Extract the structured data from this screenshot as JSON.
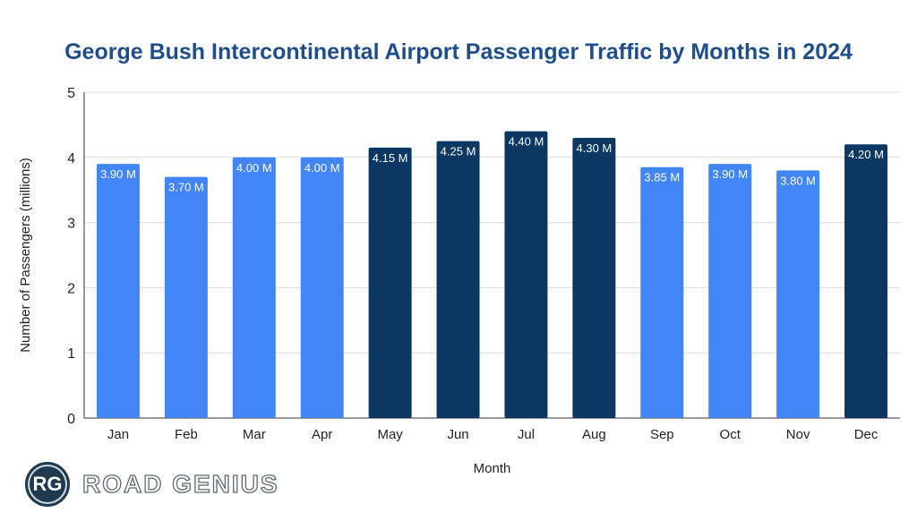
{
  "chart_data": {
    "type": "bar",
    "title": "George Bush Intercontinental Airport Passenger Traffic by Months in 2024",
    "xlabel": "Month",
    "ylabel": "Number of Passengers (millions)",
    "ylim": [
      0,
      5
    ],
    "yticks": [
      "0",
      "1",
      "2",
      "3",
      "4",
      "5"
    ],
    "grid": true,
    "categories": [
      "Jan",
      "Feb",
      "Mar",
      "Apr",
      "May",
      "Jun",
      "Jul",
      "Aug",
      "Sep",
      "Oct",
      "Nov",
      "Dec"
    ],
    "values": [
      3.9,
      3.7,
      4.0,
      4.0,
      4.15,
      4.25,
      4.4,
      4.3,
      3.85,
      3.9,
      3.8,
      4.2
    ],
    "data_labels": [
      "3.90 M",
      "3.70 M",
      "4.00 M",
      "4.00 M",
      "4.15 M",
      "4.25 M",
      "4.40 M",
      "4.30 M",
      "3.85 M",
      "3.90 M",
      "3.80 M",
      "4.20 M"
    ],
    "highlight": [
      false,
      false,
      false,
      false,
      true,
      true,
      true,
      true,
      false,
      false,
      false,
      true
    ],
    "colors": {
      "normal": "#4285F4",
      "highlight": "#0B3763",
      "title": "#1F4E8C"
    }
  },
  "logo": {
    "badge": "RG",
    "text": "ROAD GENIUS"
  }
}
